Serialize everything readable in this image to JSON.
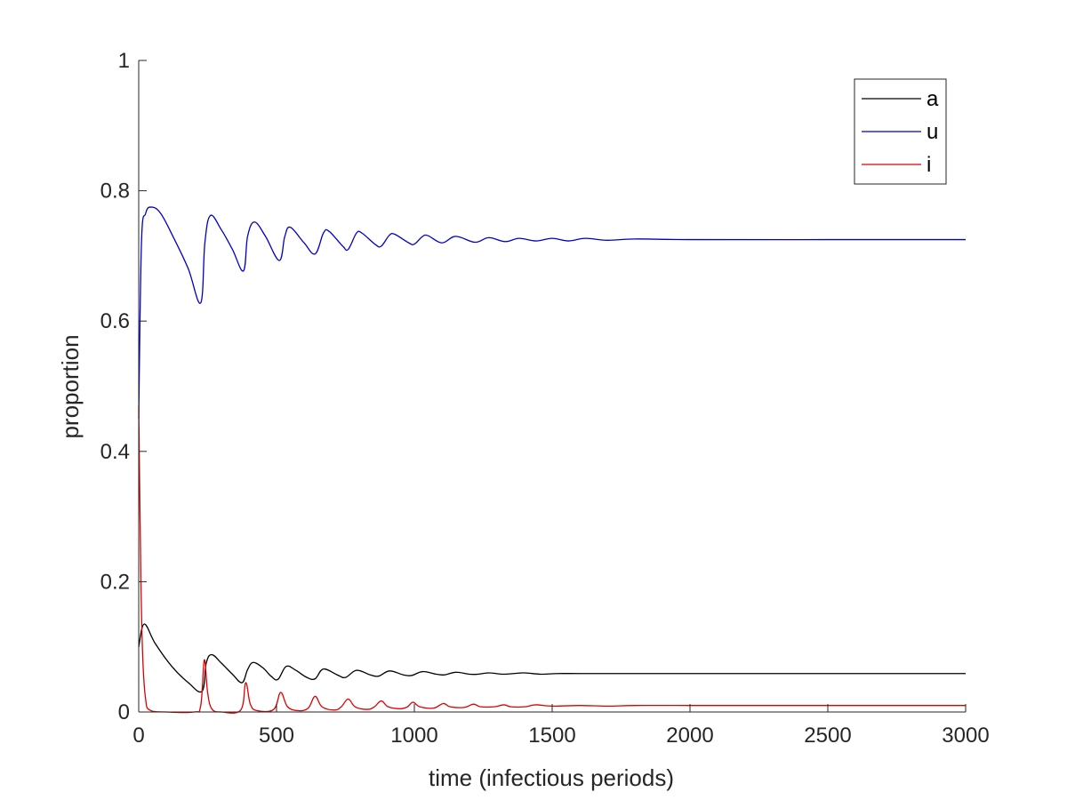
{
  "chart_data": {
    "type": "line",
    "title": "",
    "xlabel": "time (infectious periods)",
    "ylabel": "proportion",
    "xlim": [
      0,
      3000
    ],
    "ylim": [
      0,
      1
    ],
    "xticks": [
      0,
      500,
      1000,
      1500,
      2000,
      2500,
      3000
    ],
    "yticks": [
      0,
      0.2,
      0.4,
      0.6,
      0.8,
      1
    ],
    "xtick_labels": [
      "0",
      "500",
      "1000",
      "1500",
      "2000",
      "2500",
      "3000"
    ],
    "ytick_labels": [
      "0",
      "0.2",
      "0.4",
      "0.6",
      "0.8",
      "1"
    ],
    "grid": false,
    "legend": {
      "position": "top-right",
      "box": true
    },
    "series": [
      {
        "name": "a",
        "color": "#000000",
        "points": [
          [
            0,
            0.1
          ],
          [
            20,
            0.135
          ],
          [
            60,
            0.105
          ],
          [
            120,
            0.07
          ],
          [
            180,
            0.045
          ],
          [
            230,
            0.032
          ],
          [
            245,
            0.075
          ],
          [
            265,
            0.088
          ],
          [
            300,
            0.075
          ],
          [
            340,
            0.058
          ],
          [
            375,
            0.045
          ],
          [
            395,
            0.065
          ],
          [
            415,
            0.076
          ],
          [
            450,
            0.068
          ],
          [
            480,
            0.055
          ],
          [
            505,
            0.05
          ],
          [
            535,
            0.07
          ],
          [
            570,
            0.064
          ],
          [
            610,
            0.053
          ],
          [
            640,
            0.051
          ],
          [
            670,
            0.066
          ],
          [
            720,
            0.057
          ],
          [
            750,
            0.053
          ],
          [
            790,
            0.064
          ],
          [
            840,
            0.057
          ],
          [
            870,
            0.055
          ],
          [
            910,
            0.063
          ],
          [
            960,
            0.057
          ],
          [
            990,
            0.056
          ],
          [
            1030,
            0.062
          ],
          [
            1080,
            0.058
          ],
          [
            1110,
            0.057
          ],
          [
            1150,
            0.061
          ],
          [
            1200,
            0.058
          ],
          [
            1230,
            0.058
          ],
          [
            1270,
            0.06
          ],
          [
            1320,
            0.058
          ],
          [
            1360,
            0.059
          ],
          [
            1400,
            0.06
          ],
          [
            1460,
            0.058
          ],
          [
            1520,
            0.059
          ],
          [
            1600,
            0.059
          ],
          [
            1800,
            0.059
          ],
          [
            2000,
            0.059
          ],
          [
            2500,
            0.059
          ],
          [
            3000,
            0.059
          ]
        ]
      },
      {
        "name": "u",
        "color": "#0000cc",
        "points": [
          [
            0,
            0.45
          ],
          [
            10,
            0.72
          ],
          [
            25,
            0.765
          ],
          [
            45,
            0.775
          ],
          [
            80,
            0.765
          ],
          [
            130,
            0.725
          ],
          [
            180,
            0.68
          ],
          [
            225,
            0.628
          ],
          [
            240,
            0.72
          ],
          [
            260,
            0.762
          ],
          [
            300,
            0.74
          ],
          [
            340,
            0.71
          ],
          [
            380,
            0.677
          ],
          [
            395,
            0.73
          ],
          [
            420,
            0.752
          ],
          [
            460,
            0.73
          ],
          [
            510,
            0.693
          ],
          [
            530,
            0.73
          ],
          [
            550,
            0.744
          ],
          [
            600,
            0.72
          ],
          [
            640,
            0.703
          ],
          [
            670,
            0.735
          ],
          [
            690,
            0.738
          ],
          [
            740,
            0.715
          ],
          [
            760,
            0.71
          ],
          [
            790,
            0.735
          ],
          [
            810,
            0.735
          ],
          [
            860,
            0.717
          ],
          [
            880,
            0.715
          ],
          [
            910,
            0.732
          ],
          [
            930,
            0.733
          ],
          [
            980,
            0.72
          ],
          [
            1000,
            0.718
          ],
          [
            1030,
            0.73
          ],
          [
            1050,
            0.731
          ],
          [
            1100,
            0.72
          ],
          [
            1150,
            0.73
          ],
          [
            1220,
            0.721
          ],
          [
            1270,
            0.728
          ],
          [
            1330,
            0.722
          ],
          [
            1380,
            0.727
          ],
          [
            1440,
            0.723
          ],
          [
            1500,
            0.727
          ],
          [
            1560,
            0.723
          ],
          [
            1620,
            0.727
          ],
          [
            1700,
            0.724
          ],
          [
            1800,
            0.726
          ],
          [
            2000,
            0.725
          ],
          [
            2500,
            0.725
          ],
          [
            3000,
            0.725
          ]
        ]
      },
      {
        "name": "i",
        "color": "#dd0000",
        "points": [
          [
            0,
            0.47
          ],
          [
            8,
            0.2
          ],
          [
            15,
            0.08
          ],
          [
            25,
            0.02
          ],
          [
            40,
            0.003
          ],
          [
            100,
            0.0
          ],
          [
            200,
            0.0
          ],
          [
            225,
            0.01
          ],
          [
            238,
            0.08
          ],
          [
            250,
            0.03
          ],
          [
            265,
            0.005
          ],
          [
            300,
            0.0
          ],
          [
            370,
            0.003
          ],
          [
            388,
            0.045
          ],
          [
            405,
            0.012
          ],
          [
            430,
            0.002
          ],
          [
            490,
            0.004
          ],
          [
            515,
            0.03
          ],
          [
            540,
            0.008
          ],
          [
            580,
            0.002
          ],
          [
            615,
            0.006
          ],
          [
            640,
            0.024
          ],
          [
            665,
            0.008
          ],
          [
            710,
            0.003
          ],
          [
            735,
            0.008
          ],
          [
            760,
            0.02
          ],
          [
            785,
            0.008
          ],
          [
            830,
            0.004
          ],
          [
            855,
            0.008
          ],
          [
            880,
            0.017
          ],
          [
            905,
            0.008
          ],
          [
            950,
            0.005
          ],
          [
            975,
            0.008
          ],
          [
            995,
            0.015
          ],
          [
            1020,
            0.008
          ],
          [
            1070,
            0.006
          ],
          [
            1105,
            0.013
          ],
          [
            1130,
            0.008
          ],
          [
            1180,
            0.007
          ],
          [
            1215,
            0.012
          ],
          [
            1240,
            0.008
          ],
          [
            1290,
            0.008
          ],
          [
            1325,
            0.011
          ],
          [
            1350,
            0.008
          ],
          [
            1400,
            0.008
          ],
          [
            1440,
            0.011
          ],
          [
            1500,
            0.009
          ],
          [
            1600,
            0.01
          ],
          [
            1700,
            0.009
          ],
          [
            1800,
            0.01
          ],
          [
            2000,
            0.01
          ],
          [
            2500,
            0.01
          ],
          [
            3000,
            0.01
          ]
        ]
      }
    ]
  }
}
